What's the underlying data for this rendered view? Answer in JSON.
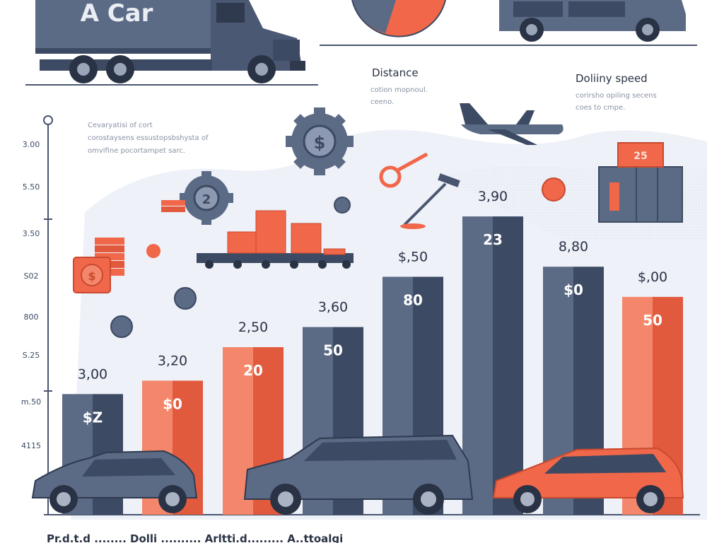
{
  "title_fragment": "A Car",
  "texts": {
    "distance_heading": "Distance",
    "distance_sub_1": "cotion mopnoul.",
    "distance_sub_2": "ceeno.",
    "speed_heading": "Doliiny speed",
    "speed_sub_1": "corirsho opiling secens",
    "speed_sub_2": "coes to cmpe.",
    "chart_note_1": "Cevaryatisi of cort",
    "chart_note_2": "corostaysens essustopsbshysta of",
    "chart_note_3": "omvifine pocortampet sarc.",
    "box_label": "25",
    "footer_strip": "Pr.d.t.d ........ Dolli .......... Arltti.d......... A..ttoalgi"
  },
  "colors": {
    "navy": "#3c4a63",
    "slate": "#5b6a85",
    "coral": "#f0674a",
    "coral_light": "#f4876b",
    "axis": "#4a5670",
    "bg_wash": "#eef1f8"
  },
  "chart_data": {
    "type": "bar",
    "y_ticks": [
      "3.00",
      "5.50",
      "3.50",
      "S02",
      "800",
      "S.25",
      "m.50",
      "4115"
    ],
    "bars": [
      {
        "top_label": "3,00",
        "inner_label": "$Z",
        "color": "slate"
      },
      {
        "top_label": "3,20",
        "inner_label": "$0",
        "color": "coral"
      },
      {
        "top_label": "2,50",
        "inner_label": "20",
        "color": "coral"
      },
      {
        "top_label": "3,60",
        "inner_label": "50",
        "color": "slate"
      },
      {
        "top_label": "$,50",
        "inner_label": "80",
        "color": "slate"
      },
      {
        "top_label": "3,90",
        "inner_label": "23",
        "color": "slate"
      },
      {
        "top_label": "8,80",
        "inner_label": "$0",
        "color": "slate"
      },
      {
        "top_label": "$,00",
        "inner_label": "50",
        "color": "coral"
      }
    ],
    "relative_heights": [
      0.36,
      0.4,
      0.5,
      0.56,
      0.71,
      0.89,
      0.74,
      0.65
    ]
  }
}
